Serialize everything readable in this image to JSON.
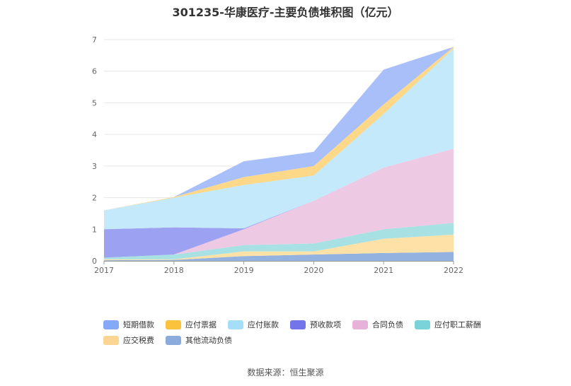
{
  "title": "301235-华康医疗-主要负债堆积图（亿元）",
  "source": "数据来源：恒生聚源",
  "chart_data": {
    "type": "area",
    "stacked": true,
    "categories": [
      "2017",
      "2018",
      "2019",
      "2020",
      "2021",
      "2022"
    ],
    "ylim": [
      0,
      7
    ],
    "yticks": [
      "0",
      "1",
      "2",
      "3",
      "4",
      "5",
      "6",
      "7"
    ],
    "series": [
      {
        "name": "其他流动负债",
        "color": "#94b2df",
        "values": [
          0.02,
          0.03,
          0.15,
          0.2,
          0.25,
          0.28
        ]
      },
      {
        "name": "应交税费",
        "color": "#fde1a6",
        "values": [
          0.03,
          0.02,
          0.15,
          0.1,
          0.45,
          0.55
        ]
      },
      {
        "name": "应付职工薪酬",
        "color": "#a7e1e4",
        "values": [
          0.05,
          0.15,
          0.2,
          0.25,
          0.3,
          0.37
        ]
      },
      {
        "name": "合同负债",
        "color": "#edc9e4",
        "values": [
          0,
          0,
          0.5,
          1.35,
          1.95,
          2.35
        ]
      },
      {
        "name": "预收款项",
        "color": "#9da1f1",
        "values": [
          0.9,
          0.86,
          0.03,
          0,
          0,
          0
        ]
      },
      {
        "name": "应付账款",
        "color": "#c3e9fa",
        "values": [
          0.6,
          0.94,
          1.37,
          0.8,
          1.7,
          3.17
        ]
      },
      {
        "name": "应付票据",
        "color": "#fdd888",
        "values": [
          0,
          0.02,
          0.25,
          0.3,
          0.3,
          0.05
        ]
      },
      {
        "name": "短期借款",
        "color": "#a8bff9",
        "values": [
          0,
          0,
          0.5,
          0.45,
          1.1,
          0
        ]
      }
    ],
    "legend": {
      "position": "bottom",
      "rows": [
        [
          {
            "label": "短期借款",
            "color": "#85a9f6"
          },
          {
            "label": "应付票据",
            "color": "#fbc23e"
          },
          {
            "label": "应付账款",
            "color": "#a6ddf7"
          },
          {
            "label": "预收款项",
            "color": "#7474ea"
          },
          {
            "label": "合同负债",
            "color": "#e7b2d8"
          },
          {
            "label": "应付职工薪酬",
            "color": "#7ad3d8"
          }
        ],
        [
          {
            "label": "应交税费",
            "color": "#fcd592"
          },
          {
            "label": "其他流动负债",
            "color": "#8aabdb"
          }
        ]
      ]
    }
  }
}
